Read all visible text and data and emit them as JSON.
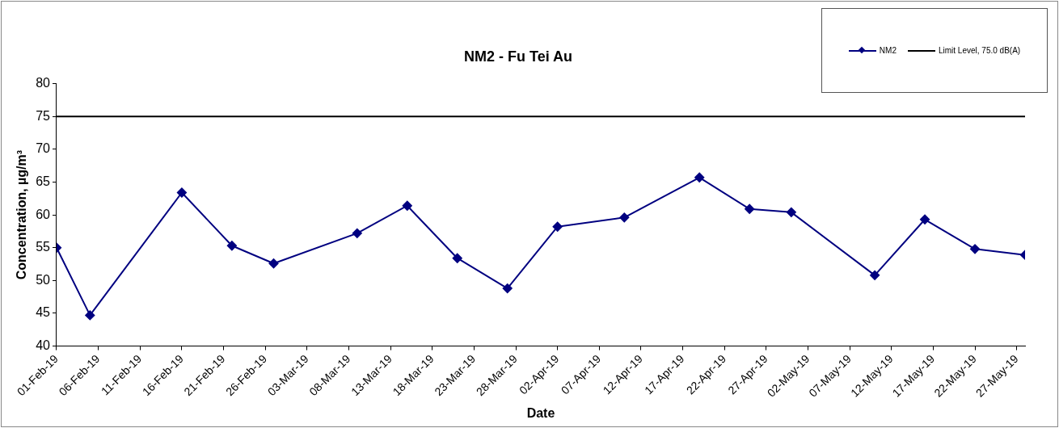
{
  "chart_data": {
    "type": "line",
    "title": "NM2 - Fu Tei Au",
    "xlabel": "Date",
    "ylabel": "Concentration, µg/m³",
    "x": [
      "--02-01",
      "--02-05",
      "--02-16",
      "--02-22",
      "--02-27",
      "--03-09",
      "--03-15",
      "--03-21",
      "--03-27",
      "--04-02",
      "--04-10",
      "--04-19",
      "--04-25",
      "--04-30",
      "--05-10",
      "--05-16",
      "--05-22",
      "--05-28"
    ],
    "series": [
      {
        "name": "NM2",
        "color": "#000080",
        "values": [
          55.0,
          44.7,
          63.4,
          55.3,
          52.6,
          57.2,
          61.4,
          53.4,
          48.8,
          58.2,
          59.6,
          65.7,
          60.9,
          60.4,
          50.8,
          59.3,
          54.8,
          53.9
        ]
      }
    ],
    "ref_lines": [
      {
        "axis": "y",
        "value": 75,
        "label": "Limit Level, 75.0 dB(A)",
        "color": "#000000"
      }
    ],
    "xlim": [
      "--02-01",
      "--05-28"
    ],
    "xticks": [
      {
        "value": "--02-01",
        "label": "01-Feb-19"
      },
      {
        "value": "--02-06",
        "label": "06-Feb-19"
      },
      {
        "value": "--02-11",
        "label": "11-Feb-19"
      },
      {
        "value": "--02-16",
        "label": "16-Feb-19"
      },
      {
        "value": "--02-21",
        "label": "21-Feb-19"
      },
      {
        "value": "--02-26",
        "label": "26-Feb-19"
      },
      {
        "value": "--03-03",
        "label": "03-Mar-19"
      },
      {
        "value": "--03-08",
        "label": "08-Mar-19"
      },
      {
        "value": "--03-13",
        "label": "13-Mar-19"
      },
      {
        "value": "--03-18",
        "label": "18-Mar-19"
      },
      {
        "value": "--03-23",
        "label": "23-Mar-19"
      },
      {
        "value": "--03-28",
        "label": "28-Mar-19"
      },
      {
        "value": "--04-02",
        "label": "02-Apr-19"
      },
      {
        "value": "--04-07",
        "label": "07-Apr-19"
      },
      {
        "value": "--04-12",
        "label": "12-Apr-19"
      },
      {
        "value": "--04-17",
        "label": "17-Apr-19"
      },
      {
        "value": "--04-22",
        "label": "22-Apr-19"
      },
      {
        "value": "--04-27",
        "label": "27-Apr-19"
      },
      {
        "value": "--05-02",
        "label": "02-May-19"
      },
      {
        "value": "--05-07",
        "label": "07-May-19"
      },
      {
        "value": "--05-12",
        "label": "12-May-19"
      },
      {
        "value": "--05-17",
        "label": "17-May-19"
      },
      {
        "value": "--05-22",
        "label": "22-May-19"
      },
      {
        "value": "--05-27",
        "label": "27-May-19"
      }
    ],
    "ylim": [
      40,
      80
    ],
    "yticks": [
      40,
      45,
      50,
      55,
      60,
      65,
      70,
      75,
      80
    ],
    "grid": false,
    "legend": "top right",
    "marker": "diamond",
    "line_style": "solid"
  }
}
